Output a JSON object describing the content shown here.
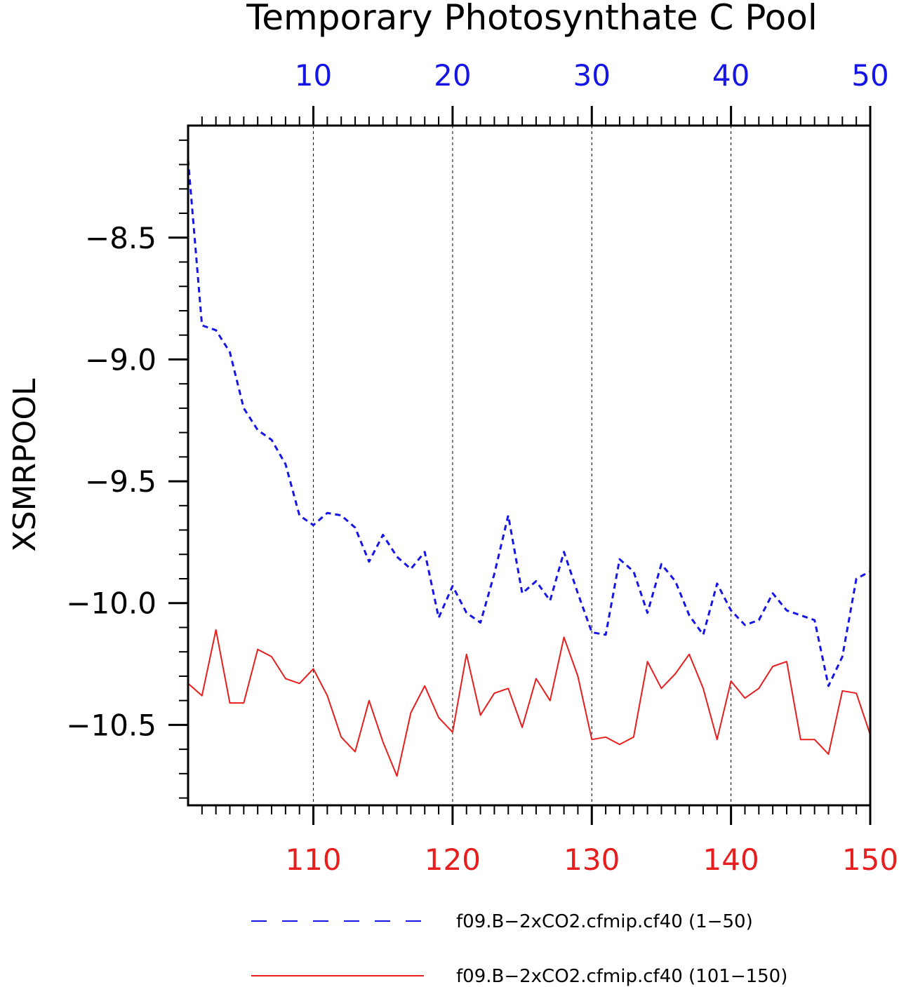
{
  "chart_data": {
    "type": "line",
    "title": "Temporary Photosynthate C Pool",
    "ylabel": "XSMRPOOL",
    "ylim": [
      -10.83,
      -8.04
    ],
    "y_ticks": [
      -8.5,
      -9.0,
      -9.5,
      -10.0,
      -10.5
    ],
    "y_tick_labels": [
      "−8.5",
      "−9.0",
      "−9.5",
      "−10.0",
      "−10.5"
    ],
    "grid": "vertical dashed at major x ticks",
    "top_axis": {
      "range": [
        1,
        50
      ],
      "ticks": [
        10,
        20,
        30,
        40,
        50
      ],
      "tick_labels": [
        "10",
        "20",
        "30",
        "40",
        "50"
      ],
      "color": "#1515e6"
    },
    "bottom_axis": {
      "range": [
        101,
        150
      ],
      "ticks": [
        110,
        120,
        130,
        140,
        150
      ],
      "tick_labels": [
        "110",
        "120",
        "130",
        "140",
        "150"
      ],
      "color": "#e61e1e"
    },
    "series": [
      {
        "name": "f09.B−2xCO2.cfmip.cf40 (1−50)",
        "axis": "top",
        "color": "#1515e6",
        "style": "dashed",
        "x": [
          1,
          2,
          3,
          4,
          5,
          6,
          7,
          8,
          9,
          10,
          11,
          12,
          13,
          14,
          15,
          16,
          17,
          18,
          19,
          20,
          21,
          22,
          23,
          24,
          25,
          26,
          27,
          28,
          29,
          30,
          31,
          32,
          33,
          34,
          35,
          36,
          37,
          38,
          39,
          40,
          41,
          42,
          43,
          44,
          45,
          46,
          47,
          48,
          49,
          50
        ],
        "values": [
          -8.18,
          -8.86,
          -8.88,
          -8.97,
          -9.2,
          -9.29,
          -9.33,
          -9.43,
          -9.64,
          -9.68,
          -9.63,
          -9.64,
          -9.69,
          -9.83,
          -9.72,
          -9.81,
          -9.86,
          -9.79,
          -10.06,
          -9.93,
          -10.04,
          -10.08,
          -9.88,
          -9.64,
          -9.96,
          -9.91,
          -9.99,
          -9.79,
          -9.96,
          -10.12,
          -10.13,
          -9.82,
          -9.87,
          -10.04,
          -9.84,
          -9.91,
          -10.05,
          -10.13,
          -9.92,
          -10.03,
          -10.09,
          -10.07,
          -9.96,
          -10.03,
          -10.05,
          -10.07,
          -10.34,
          -10.22,
          -9.9,
          -9.87
        ]
      },
      {
        "name": "f09.B−2xCO2.cfmip.cf40 (101−150)",
        "axis": "bottom",
        "color": "#e61e1e",
        "style": "solid",
        "x": [
          101,
          102,
          103,
          104,
          105,
          106,
          107,
          108,
          109,
          110,
          111,
          112,
          113,
          114,
          115,
          116,
          117,
          118,
          119,
          120,
          121,
          122,
          123,
          124,
          125,
          126,
          127,
          128,
          129,
          130,
          131,
          132,
          133,
          134,
          135,
          136,
          137,
          138,
          139,
          140,
          141,
          142,
          143,
          144,
          145,
          146,
          147,
          148,
          149,
          150
        ],
        "values": [
          -10.33,
          -10.38,
          -10.11,
          -10.41,
          -10.41,
          -10.19,
          -10.22,
          -10.31,
          -10.33,
          -10.27,
          -10.38,
          -10.55,
          -10.61,
          -10.4,
          -10.57,
          -10.71,
          -10.45,
          -10.34,
          -10.47,
          -10.53,
          -10.21,
          -10.46,
          -10.37,
          -10.35,
          -10.51,
          -10.31,
          -10.4,
          -10.14,
          -10.3,
          -10.56,
          -10.55,
          -10.58,
          -10.55,
          -10.24,
          -10.35,
          -10.29,
          -10.21,
          -10.35,
          -10.56,
          -10.32,
          -10.39,
          -10.35,
          -10.26,
          -10.24,
          -10.56,
          -10.56,
          -10.62,
          -10.36,
          -10.37,
          -10.54
        ]
      }
    ],
    "legend": {
      "placement": "bottom"
    }
  }
}
